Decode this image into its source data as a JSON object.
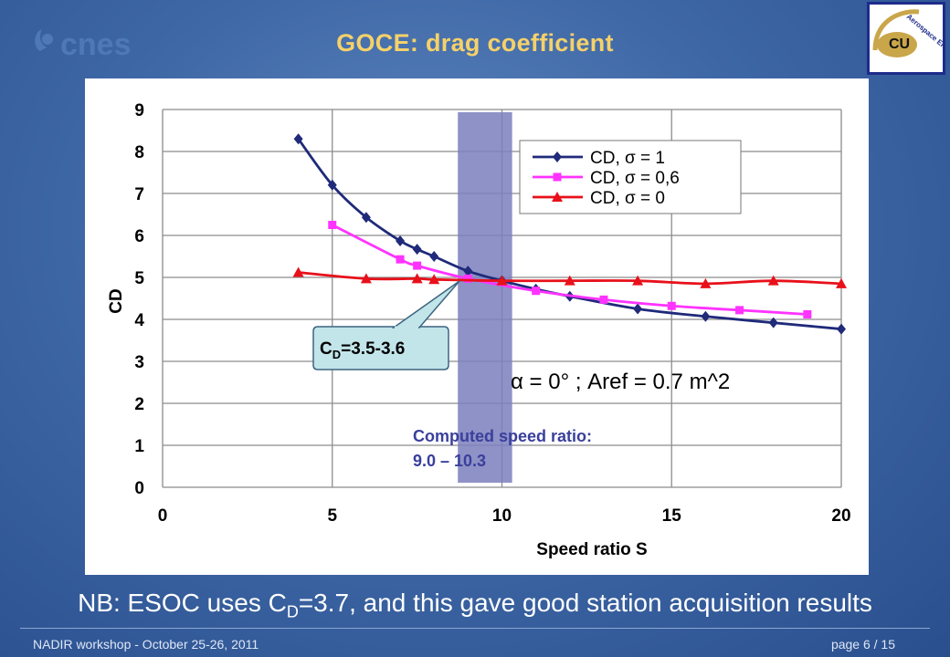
{
  "header": {
    "logo_text": "cnes",
    "title": "GOCE: drag coefficient",
    "cu_logo_text": "Aerospace Engineering",
    "cu_logo_mark": "CU"
  },
  "chart_data": {
    "type": "line",
    "xlabel": "Speed ratio S",
    "ylabel": "CD",
    "xlim": [
      0,
      20
    ],
    "ylim": [
      0,
      9
    ],
    "xticks": [
      0,
      5,
      10,
      15,
      20
    ],
    "yticks": [
      0,
      1,
      2,
      3,
      4,
      5,
      6,
      7,
      8,
      9
    ],
    "grid": true,
    "legend_position": "top-right",
    "series": [
      {
        "name": "CD, σ = 1",
        "color": "#1f2a7a",
        "marker": "diamond",
        "x": [
          4,
          5,
          6,
          7,
          7.5,
          8,
          9,
          10,
          11,
          12,
          14,
          16,
          18,
          20
        ],
        "y": [
          8.3,
          7.2,
          6.43,
          5.87,
          5.67,
          5.5,
          5.15,
          4.92,
          4.72,
          4.55,
          4.25,
          4.07,
          3.92,
          3.77
        ]
      },
      {
        "name": "CD, σ = 0,6",
        "color": "#ff33ff",
        "marker": "square",
        "x": [
          5,
          7,
          7.5,
          9,
          11,
          13,
          15,
          17,
          19
        ],
        "y": [
          6.25,
          5.43,
          5.28,
          4.97,
          4.68,
          4.47,
          4.32,
          4.22,
          4.12
        ]
      },
      {
        "name": "CD, σ = 0",
        "color": "#e8101a",
        "marker": "triangle",
        "x": [
          4,
          6,
          7.5,
          8,
          10,
          12,
          14,
          16,
          18,
          20
        ],
        "y": [
          5.12,
          4.97,
          4.97,
          4.95,
          4.92,
          4.92,
          4.92,
          4.85,
          4.92,
          4.85
        ]
      }
    ],
    "highlight_band": {
      "x_from": 8.7,
      "x_to": 10.3,
      "color": "#7a7fbd"
    },
    "annotations": {
      "alpha_line": "α  = 0° ; Aref = 0.7 m^2",
      "computed_line1": "Computed speed ratio:",
      "computed_line2": "9.0 – 10.3",
      "callout_main": "C",
      "callout_sub": "D",
      "callout_value": "=3.5-3.6"
    }
  },
  "note": {
    "prefix": "NB: ESOC uses C",
    "sub": "D",
    "suffix": "=3.7, and this gave good station acquisition results"
  },
  "footer": {
    "left": "NADIR workshop  -  October 25-26, 2011",
    "right": "page 6 / 15"
  }
}
